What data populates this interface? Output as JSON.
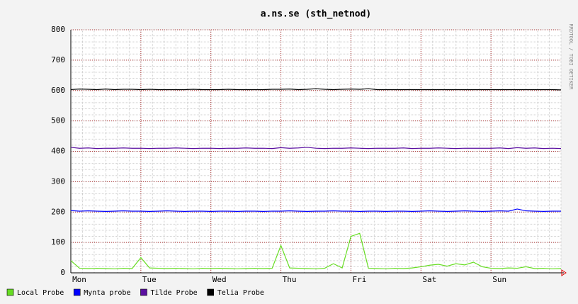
{
  "chart_data": {
    "type": "line",
    "title": "a.ns.se (sth_netnod)",
    "side_label": "RRDTOOL / TOBI OETIKER",
    "x": [
      0,
      0.125,
      0.25,
      0.375,
      0.5,
      0.625,
      0.75,
      0.875,
      1,
      1.125,
      1.25,
      1.375,
      1.5,
      1.625,
      1.75,
      1.875,
      2,
      2.125,
      2.25,
      2.375,
      2.5,
      2.625,
      2.75,
      2.875,
      3,
      3.125,
      3.25,
      3.375,
      3.5,
      3.625,
      3.75,
      3.875,
      4,
      4.125,
      4.25,
      4.375,
      4.5,
      4.625,
      4.75,
      4.875,
      5,
      5.125,
      5.25,
      5.375,
      5.5,
      5.625,
      5.75,
      5.875,
      6,
      6.125,
      6.25,
      6.375,
      6.5,
      6.625,
      6.75,
      6.875,
      7
    ],
    "series": [
      {
        "name": "Local Probe",
        "color": "#66dd22",
        "values": [
          40,
          15,
          14,
          15,
          14,
          13,
          15,
          14,
          50,
          16,
          15,
          14,
          15,
          14,
          13,
          15,
          14,
          15,
          14,
          13,
          14,
          15,
          14,
          15,
          90,
          16,
          15,
          14,
          13,
          15,
          30,
          16,
          120,
          130,
          15,
          14,
          13,
          15,
          14,
          16,
          20,
          25,
          28,
          22,
          30,
          26,
          35,
          20,
          15,
          14,
          16,
          15,
          20,
          14,
          15,
          13,
          14
        ]
      },
      {
        "name": "Mynta probe",
        "color": "#0000ff",
        "values": [
          205,
          203,
          204,
          203,
          202,
          203,
          204,
          203,
          203,
          202,
          203,
          204,
          203,
          202,
          203,
          203,
          202,
          203,
          203,
          202,
          203,
          203,
          202,
          203,
          203,
          204,
          203,
          202,
          203,
          203,
          204,
          203,
          203,
          202,
          203,
          203,
          202,
          203,
          203,
          202,
          203,
          204,
          203,
          202,
          203,
          204,
          203,
          202,
          203,
          204,
          203,
          210,
          204,
          203,
          202,
          203,
          203
        ]
      },
      {
        "name": "Tilde Probe",
        "color": "#5a0fa0",
        "values": [
          413,
          410,
          411,
          409,
          410,
          410,
          411,
          410,
          410,
          409,
          410,
          410,
          411,
          410,
          409,
          410,
          410,
          409,
          410,
          410,
          411,
          410,
          410,
          409,
          412,
          410,
          411,
          413,
          410,
          409,
          410,
          410,
          411,
          410,
          409,
          410,
          410,
          410,
          411,
          409,
          410,
          410,
          411,
          410,
          409,
          410,
          410,
          410,
          410,
          411,
          409,
          412,
          410,
          411,
          409,
          410,
          409
        ]
      },
      {
        "name": "Telia Probe",
        "color": "#000000",
        "values": [
          603,
          605,
          604,
          603,
          605,
          603,
          604,
          604,
          603,
          604,
          603,
          603,
          603,
          603,
          604,
          603,
          603,
          603,
          604,
          603,
          603,
          603,
          603,
          604,
          604,
          605,
          603,
          604,
          606,
          604,
          603,
          604,
          605,
          604,
          606,
          603,
          603,
          603,
          603,
          603,
          603,
          603,
          603,
          603,
          603,
          603,
          603,
          603,
          603,
          603,
          603,
          603,
          603,
          603,
          603,
          603,
          602
        ]
      }
    ],
    "xlim": [
      0,
      7
    ],
    "xticks": [
      {
        "value": 0,
        "label": "Mon"
      },
      {
        "value": 1,
        "label": "Tue"
      },
      {
        "value": 2,
        "label": "Wed"
      },
      {
        "value": 3,
        "label": "Thu"
      },
      {
        "value": 4,
        "label": "Fri"
      },
      {
        "value": 5,
        "label": "Sat"
      },
      {
        "value": 6,
        "label": "Sun"
      }
    ],
    "ylim": [
      0,
      800
    ],
    "yticks": [
      0,
      100,
      200,
      300,
      400,
      500,
      600,
      700,
      800
    ],
    "grid": true
  }
}
